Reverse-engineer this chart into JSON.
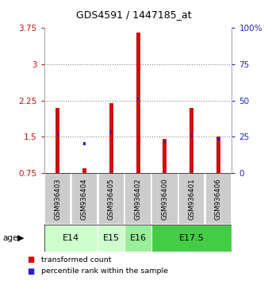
{
  "title": "GDS4591 / 1447185_at",
  "samples": [
    "GSM936403",
    "GSM936404",
    "GSM936405",
    "GSM936402",
    "GSM936400",
    "GSM936401",
    "GSM936406"
  ],
  "red_values": [
    2.1,
    0.85,
    2.2,
    3.65,
    1.45,
    2.1,
    1.5
  ],
  "blue_values": [
    1.55,
    1.35,
    1.6,
    2.28,
    1.38,
    1.52,
    1.45
  ],
  "y_min": 0.75,
  "y_max": 3.75,
  "y_ticks_red": [
    0.75,
    1.5,
    2.25,
    3.0,
    3.75
  ],
  "y_tick_labels_red": [
    "0.75",
    "1.5",
    "2.25",
    "3",
    "3.75"
  ],
  "y_ticks_blue_pct": [
    0,
    25,
    50,
    75,
    100
  ],
  "y_tick_labels_blue": [
    "0",
    "25",
    "50",
    "75",
    "100%"
  ],
  "age_groups": [
    {
      "label": "E14",
      "start": 0,
      "end": 2,
      "color": "#ccffcc"
    },
    {
      "label": "E15",
      "start": 2,
      "end": 3,
      "color": "#ccffcc"
    },
    {
      "label": "E16",
      "start": 3,
      "end": 4,
      "color": "#99ee99"
    },
    {
      "label": "E17.5",
      "start": 4,
      "end": 7,
      "color": "#44cc44"
    }
  ],
  "bar_width": 0.15,
  "red_color": "#cc1111",
  "blue_color": "#2222cc",
  "grid_color": "#888888",
  "sample_bg": "#cccccc",
  "age_e14_color": "#ccffcc",
  "age_e16_color": "#99ee99",
  "age_e175_color": "#44cc44"
}
